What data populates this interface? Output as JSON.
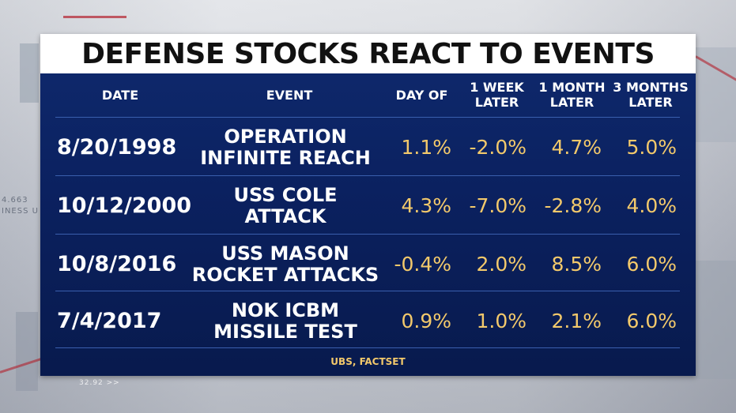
{
  "title": "DEFENSE STOCKS REACT TO EVENTS",
  "chart_data": {
    "type": "table",
    "title": "DEFENSE STOCKS REACT TO EVENTS",
    "columns": [
      "DATE",
      "EVENT",
      "DAY OF",
      "1 WEEK\nLATER",
      "1 MONTH\nLATER",
      "3 MONTHS\nLATER"
    ],
    "rows": [
      {
        "date": "8/20/1998",
        "event": "OPERATION\nINFINITE REACH",
        "day_of": "1.1%",
        "week_1": "-2.0%",
        "month_1": "4.7%",
        "month_3": "5.0%"
      },
      {
        "date": "10/12/2000",
        "event": "USS COLE\nATTACK",
        "day_of": "4.3%",
        "week_1": "-7.0%",
        "month_1": "-2.8%",
        "month_3": "4.0%"
      },
      {
        "date": "10/8/2016",
        "event": "USS MASON\nROCKET ATTACKS",
        "day_of": "-0.4%",
        "week_1": "2.0%",
        "month_1": "8.5%",
        "month_3": "6.0%"
      },
      {
        "date": "7/4/2017",
        "event": "NOK ICBM\nMISSILE TEST",
        "day_of": "0.9%",
        "week_1": "1.0%",
        "month_1": "2.1%",
        "month_3": "6.0%"
      }
    ],
    "source": "UBS, FACTSET"
  },
  "background": {
    "ghost_text_1": "4.663",
    "ghost_text_2": "INESS U",
    "ghost_text_3": "32.92 >>"
  },
  "colors": {
    "panel": "#0b2160",
    "value_text": "#f3c96b",
    "label_text": "#ffffff",
    "title_bg": "#ffffff"
  }
}
